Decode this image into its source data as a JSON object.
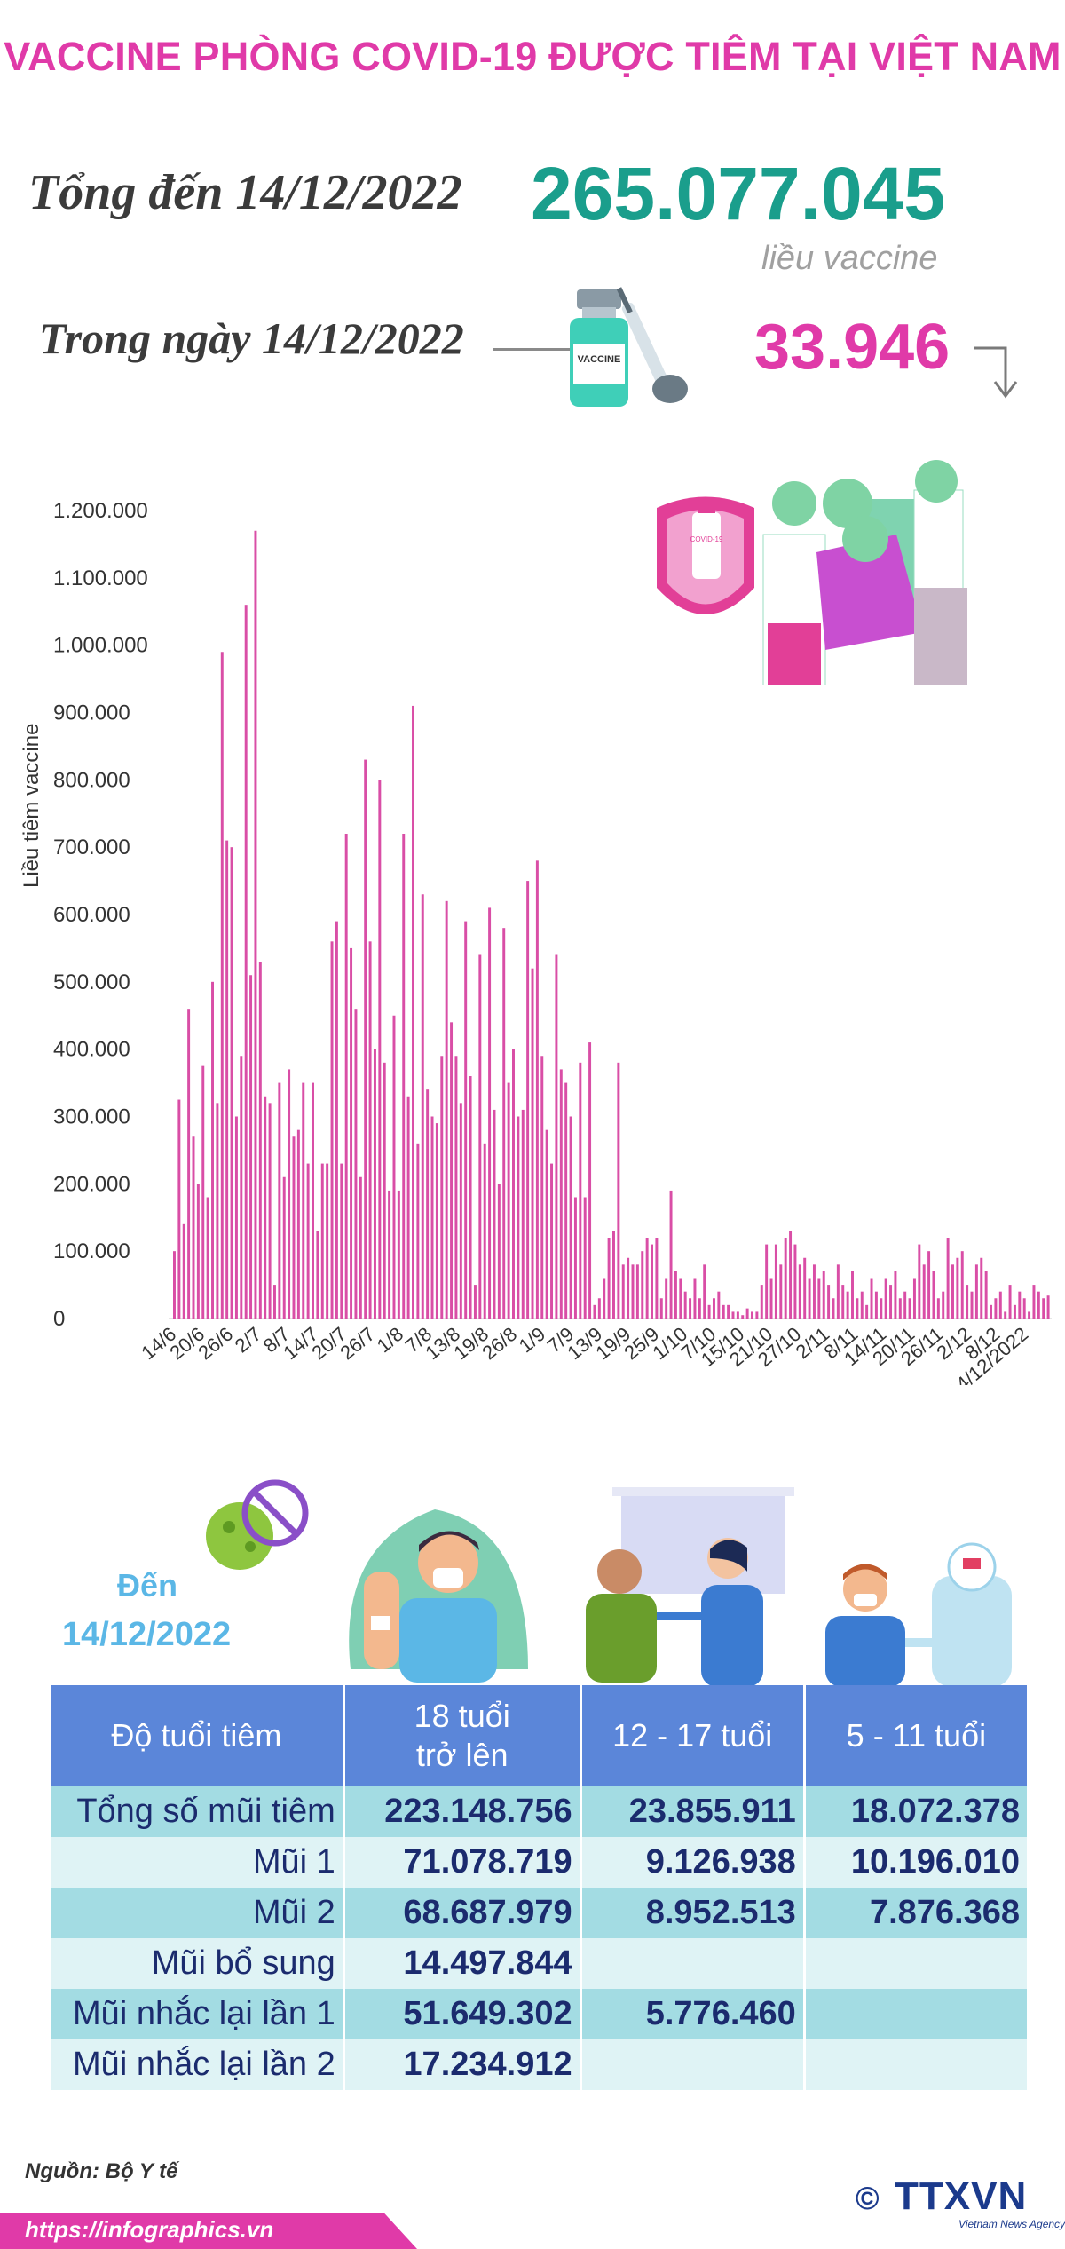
{
  "header": {
    "title": "VACCINE PHÒNG COVID-19 ĐƯỢC TIÊM TẠI VIỆT NAM",
    "total_label": "Tổng đến 14/12/2022",
    "total_value": "265.077.045",
    "total_unit": "liều vaccine",
    "day_label": "Trong ngày 14/12/2022",
    "day_value": "33.946"
  },
  "colors": {
    "title": "#e03aa8",
    "total_value": "#1a9e8c",
    "bars": "#d94ea6",
    "table_header": "#5b86d9",
    "row_dark": "#a3dce3",
    "row_light": "#dff3f5",
    "table_text": "#1b2b6e",
    "date_label": "#5bb7e6"
  },
  "illustrations": {
    "vial_text": "VACCINE",
    "shield_vial_text": "COVID-19"
  },
  "chart_data": {
    "type": "bar",
    "ylabel": "Liều tiêm vaccine",
    "ylim": [
      0,
      1200000
    ],
    "y_ticks": [
      "1.200.000",
      "1.100.000",
      "1.000.000",
      "900.000",
      "800.000",
      "700.000",
      "600.000",
      "500.000",
      "400.000",
      "300.000",
      "200.000",
      "100.000",
      "0"
    ],
    "x_tick_labels": [
      "14/6",
      "20/6",
      "26/6",
      "2/7",
      "8/7",
      "14/7",
      "20/7",
      "26/7",
      "1/8",
      "7/8",
      "13/8",
      "19/8",
      "26/8",
      "1/9",
      "7/9",
      "13/9",
      "19/9",
      "25/9",
      "1/10",
      "7/10",
      "15/10",
      "21/10",
      "27/10",
      "2/11",
      "8/11",
      "14/11",
      "20/11",
      "26/11",
      "2/12",
      "8/12",
      "14/12/2022"
    ],
    "x_range": [
      "14/6/2022",
      "14/12/2022"
    ],
    "grid": false,
    "values": [
      100000,
      325000,
      140000,
      460000,
      270000,
      200000,
      375000,
      180000,
      500000,
      320000,
      990000,
      710000,
      700000,
      300000,
      390000,
      1060000,
      510000,
      1170000,
      530000,
      330000,
      320000,
      50000,
      350000,
      210000,
      370000,
      270000,
      280000,
      350000,
      230000,
      350000,
      130000,
      230000,
      230000,
      560000,
      590000,
      230000,
      720000,
      550000,
      460000,
      210000,
      830000,
      560000,
      400000,
      800000,
      380000,
      190000,
      450000,
      190000,
      720000,
      330000,
      910000,
      260000,
      630000,
      340000,
      300000,
      290000,
      390000,
      620000,
      440000,
      390000,
      320000,
      590000,
      360000,
      50000,
      540000,
      260000,
      610000,
      310000,
      200000,
      580000,
      350000,
      400000,
      300000,
      310000,
      650000,
      520000,
      680000,
      390000,
      280000,
      230000,
      540000,
      370000,
      350000,
      300000,
      180000,
      380000,
      180000,
      410000,
      20000,
      30000,
      60000,
      120000,
      130000,
      380000,
      80000,
      90000,
      80000,
      80000,
      100000,
      120000,
      110000,
      120000,
      30000,
      60000,
      190000,
      70000,
      60000,
      40000,
      30000,
      60000,
      30000,
      80000,
      20000,
      30000,
      40000,
      20000,
      20000,
      10000,
      10000,
      5000,
      15000,
      10000,
      10000,
      50000,
      110000,
      60000,
      110000,
      80000,
      120000,
      130000,
      110000,
      80000,
      90000,
      60000,
      80000,
      60000,
      70000,
      50000,
      30000,
      80000,
      50000,
      40000,
      70000,
      30000,
      40000,
      20000,
      60000,
      40000,
      30000,
      60000,
      50000,
      70000,
      30000,
      40000,
      30000,
      60000,
      110000,
      80000,
      100000,
      70000,
      30000,
      40000,
      120000,
      80000,
      90000,
      100000,
      50000,
      40000,
      80000,
      90000,
      70000,
      20000,
      30000,
      40000,
      10000,
      50000,
      20000,
      40000,
      30000,
      10000,
      50000,
      40000,
      30000,
      34000
    ]
  },
  "table": {
    "date_label": "Đến",
    "date_value": "14/12/2022",
    "headers": [
      "Độ tuổi tiêm",
      "18 tuổi\ntrở lên",
      "12 - 17 tuổi",
      "5 - 11 tuổi"
    ],
    "header_18_line1": "18 tuổi",
    "header_18_line2": "trở lên",
    "rows": [
      {
        "label": "Tổng số mũi tiêm",
        "adult": "223.148.756",
        "teen": "23.855.911",
        "child": "18.072.378"
      },
      {
        "label": "Mũi 1",
        "adult": "71.078.719",
        "teen": "9.126.938",
        "child": "10.196.010"
      },
      {
        "label": "Mũi 2",
        "adult": "68.687.979",
        "teen": "8.952.513",
        "child": "7.876.368"
      },
      {
        "label": "Mũi bổ sung",
        "adult": "14.497.844",
        "teen": "",
        "child": ""
      },
      {
        "label": "Mũi nhắc lại lần 1",
        "adult": "51.649.302",
        "teen": "5.776.460",
        "child": ""
      },
      {
        "label": "Mũi nhắc lại lần 2",
        "adult": "17.234.912",
        "teen": "",
        "child": ""
      }
    ]
  },
  "footer": {
    "source": "Nguồn: Bộ Y tế",
    "url": "https://infographics.vn",
    "copyright": "©",
    "logo": "TTXVN",
    "logo_sub": "Vietnam News Agency"
  }
}
